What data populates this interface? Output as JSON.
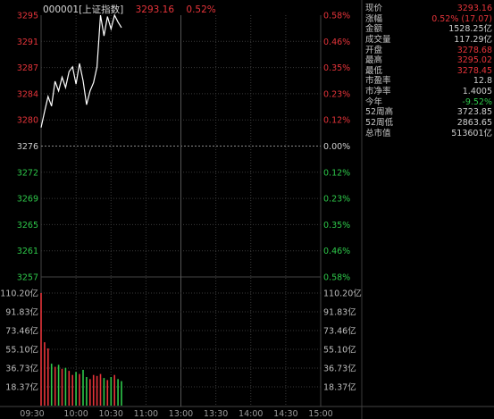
{
  "header": {
    "code_label": "000001[上证指数]",
    "price": "3293.16",
    "change_pct": "0.52%"
  },
  "price_axis_left": [
    "3295",
    "3291",
    "3287",
    "3284",
    "3280",
    "3276",
    "3272",
    "3269",
    "3265",
    "3261",
    "3257"
  ],
  "pct_axis_right": [
    "0.58%",
    "0.46%",
    "0.35%",
    "0.23%",
    "0.12%",
    "0.00%",
    "0.12%",
    "0.23%",
    "0.35%",
    "0.46%",
    "0.58%"
  ],
  "volume_axis": [
    "110.20亿",
    "91.83亿",
    "73.46亿",
    "55.10亿",
    "36.73亿",
    "18.37亿"
  ],
  "time_axis": [
    "09:30",
    "10:00",
    "10:30",
    "11:00",
    "13:00",
    "13:30",
    "14:00",
    "14:30",
    "15:00"
  ],
  "stats": [
    {
      "key": "现价",
      "value": "3293.16",
      "color": "#e6343a"
    },
    {
      "key": "涨幅",
      "value": "0.52% (17.07)",
      "color": "#e6343a"
    },
    {
      "key": "金额",
      "value": "1528.25亿",
      "color": "#cfcfcf"
    },
    {
      "key": "成交量",
      "value": "117.29亿",
      "color": "#cfcfcf"
    },
    {
      "key": "开盘",
      "value": "3278.68",
      "color": "#e6343a"
    },
    {
      "key": "最高",
      "value": "3295.02",
      "color": "#e6343a"
    },
    {
      "key": "最低",
      "value": "3278.45",
      "color": "#e6343a"
    },
    {
      "key": "市盈率",
      "value": "12.8",
      "color": "#cfcfcf"
    },
    {
      "key": "市净率",
      "value": "1.4005",
      "color": "#cfcfcf"
    },
    {
      "key": "今年",
      "value": "-9.52%",
      "color": "#2ec84a"
    },
    {
      "key": "52周高",
      "value": "3723.85",
      "color": "#cfcfcf"
    },
    {
      "key": "52周低",
      "value": "2863.65",
      "color": "#cfcfcf"
    },
    {
      "key": "总市值",
      "value": "513601亿",
      "color": "#cfcfcf"
    }
  ],
  "colors": {
    "up": "#e6343a",
    "down": "#2ec84a",
    "line": "#ffffff",
    "grid": "#3a3a3a"
  },
  "chart_data": {
    "type": "line",
    "title": "000001[上证指数]",
    "x_start": "09:30",
    "x_end": "15:00",
    "prev_close": 3276,
    "ylim": [
      3257,
      3295
    ],
    "x_minutes": [
      0,
      3,
      6,
      9,
      12,
      15,
      18,
      21,
      24,
      27,
      30,
      33,
      36,
      39,
      42,
      45,
      48,
      51,
      54,
      57,
      60,
      63,
      66,
      69
    ],
    "price": [
      3278.7,
      3281.0,
      3283.2,
      3281.8,
      3285.4,
      3284.0,
      3286.0,
      3284.5,
      3286.8,
      3287.5,
      3285.0,
      3288.0,
      3285.5,
      3282.0,
      3284.0,
      3285.2,
      3287.5,
      3295.0,
      3292.0,
      3294.8,
      3293.0,
      3295.0,
      3294.0,
      3293.2
    ],
    "volume": [
      110.2,
      62.0,
      56.0,
      41.0,
      38.0,
      40.0,
      36.0,
      37.0,
      34.0,
      30.0,
      33.0,
      31.0,
      35.0,
      28.0,
      26.0,
      30.0,
      29.0,
      31.0,
      27.0,
      25.0,
      28.0,
      30.0,
      26.0,
      24.0
    ],
    "volume_ylim": [
      0,
      110.2
    ]
  }
}
